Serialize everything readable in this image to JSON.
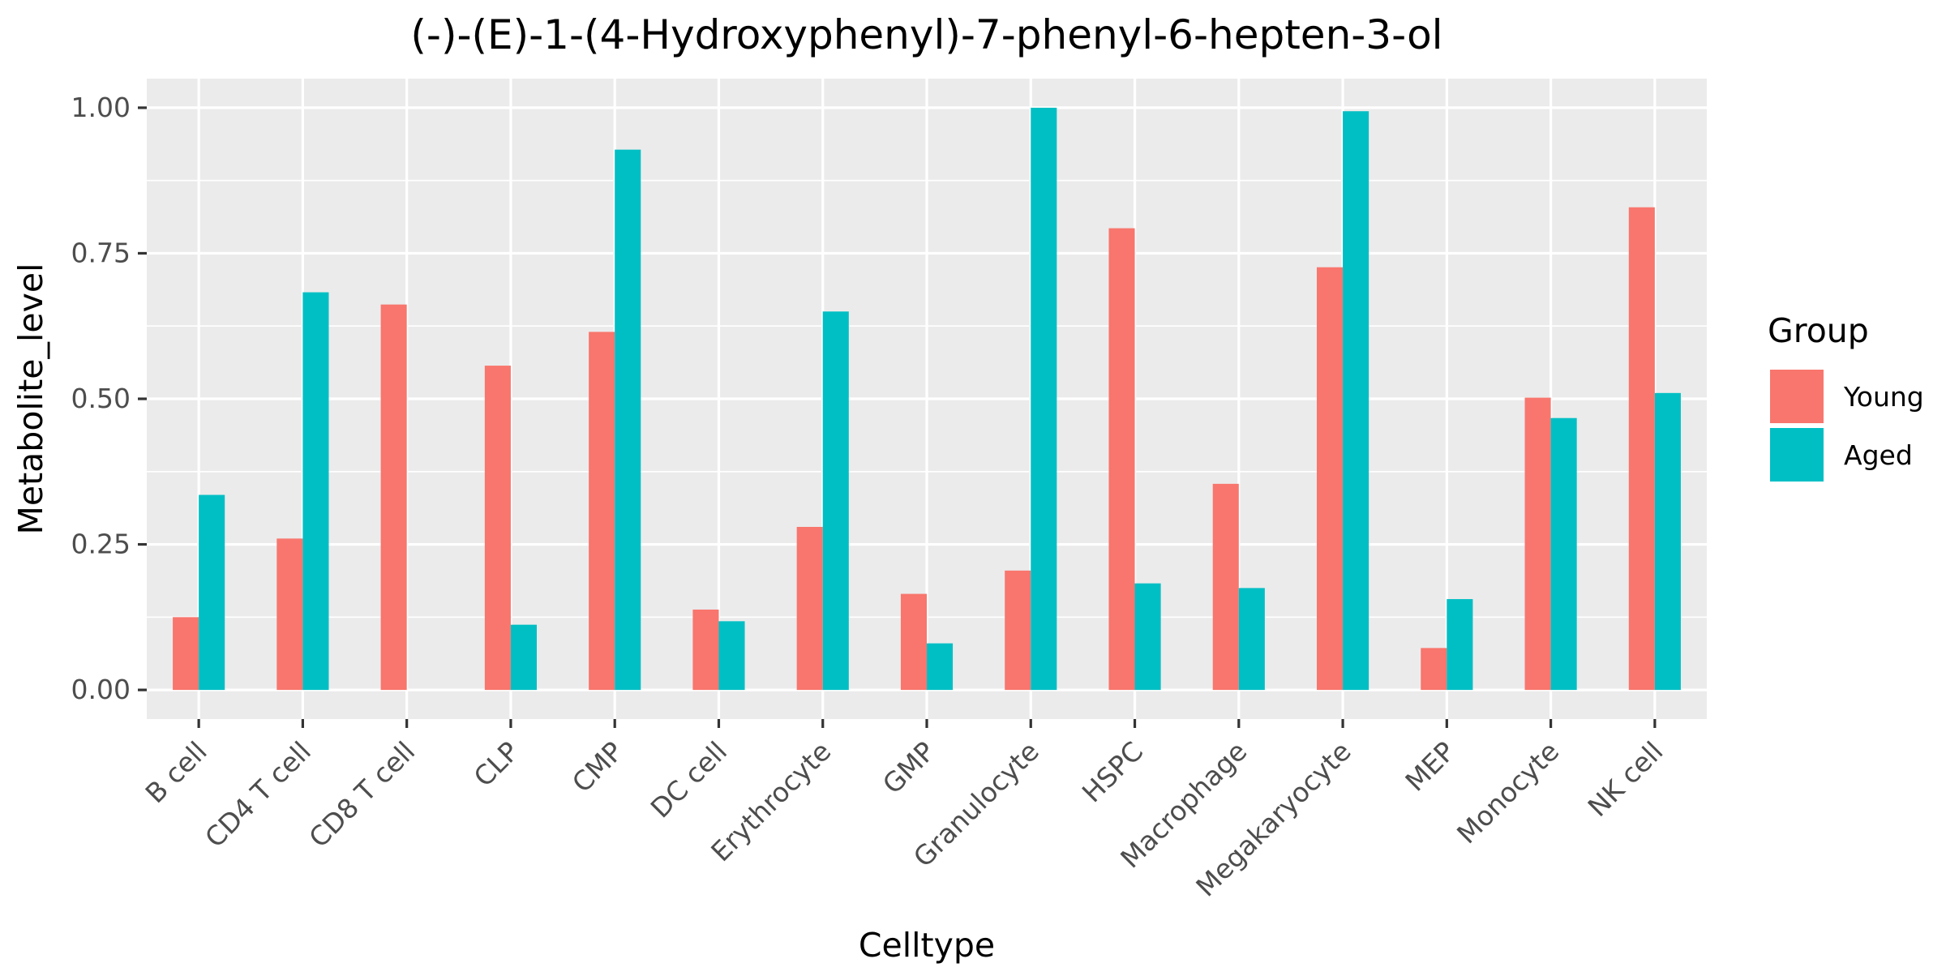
{
  "chart_data": {
    "type": "bar",
    "title": "(-)-(E)-1-(4-Hydroxyphenyl)-7-phenyl-6-hepten-3-ol",
    "xlabel": "Celltype",
    "ylabel": "Metabolite_level",
    "categories": [
      "B cell",
      "CD4 T cell",
      "CD8 T cell",
      "CLP",
      "CMP",
      "DC cell",
      "Erythrocyte",
      "GMP",
      "Granulocyte",
      "HSPC",
      "Macrophage",
      "Megakaryocyte",
      "MEP",
      "Monocyte",
      "NK cell"
    ],
    "series": [
      {
        "name": "Young",
        "color": "#F8766D",
        "values": [
          0.125,
          0.26,
          0.662,
          0.557,
          0.615,
          0.138,
          0.28,
          0.165,
          0.205,
          0.793,
          0.354,
          0.726,
          0.072,
          0.502,
          0.829
        ]
      },
      {
        "name": "Aged",
        "color": "#00BFC4",
        "values": [
          0.335,
          0.683,
          0.0,
          0.112,
          0.928,
          0.118,
          0.65,
          0.08,
          1.0,
          0.183,
          0.175,
          0.994,
          0.156,
          0.467,
          0.51
        ]
      }
    ],
    "ylim": [
      -0.05,
      1.05
    ],
    "yticks": [
      0,
      0.25,
      0.5,
      0.75,
      1
    ],
    "ytick_labels": [
      "0.00",
      "0.25",
      "0.50",
      "0.75",
      "1.00"
    ],
    "legend_title": "Group",
    "legend_position": "right",
    "grid": true,
    "panel_background": "#EBEBEB",
    "grid_color": "#FFFFFF"
  }
}
